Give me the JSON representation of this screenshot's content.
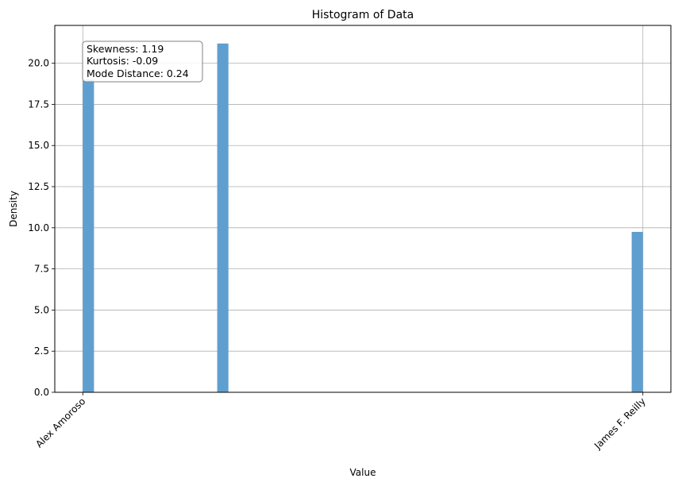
{
  "chart_data": {
    "type": "bar",
    "title": "Histogram of Data",
    "xlabel": "Value",
    "ylabel": "Density",
    "ylim": [
      0,
      22.3
    ],
    "xlim": [
      -0.05,
      1.05
    ],
    "x_ticks": [
      {
        "value": 0.0,
        "label": "Alex Amoroso"
      },
      {
        "value": 1.0,
        "label": "James F. Reilly"
      }
    ],
    "y_ticks": [
      0,
      2.5,
      5,
      7.5,
      10,
      12.5,
      15,
      17.5,
      20
    ],
    "y_tick_labels": [
      "0.0",
      "2.5",
      "5.0",
      "7.5",
      "10.0",
      "12.5",
      "15.0",
      "17.5",
      "20.0"
    ],
    "bin_width": 0.02,
    "bars": [
      {
        "x": 0.0,
        "value": 19.0
      },
      {
        "x": 0.24,
        "value": 21.2
      },
      {
        "x": 0.98,
        "value": 9.75
      }
    ],
    "bar_color": "#5f9fcf",
    "grid": true,
    "annotation": {
      "lines": [
        "Skewness: 1.19",
        "Kurtosis: -0.09",
        "Mode Distance: 0.24"
      ]
    }
  }
}
